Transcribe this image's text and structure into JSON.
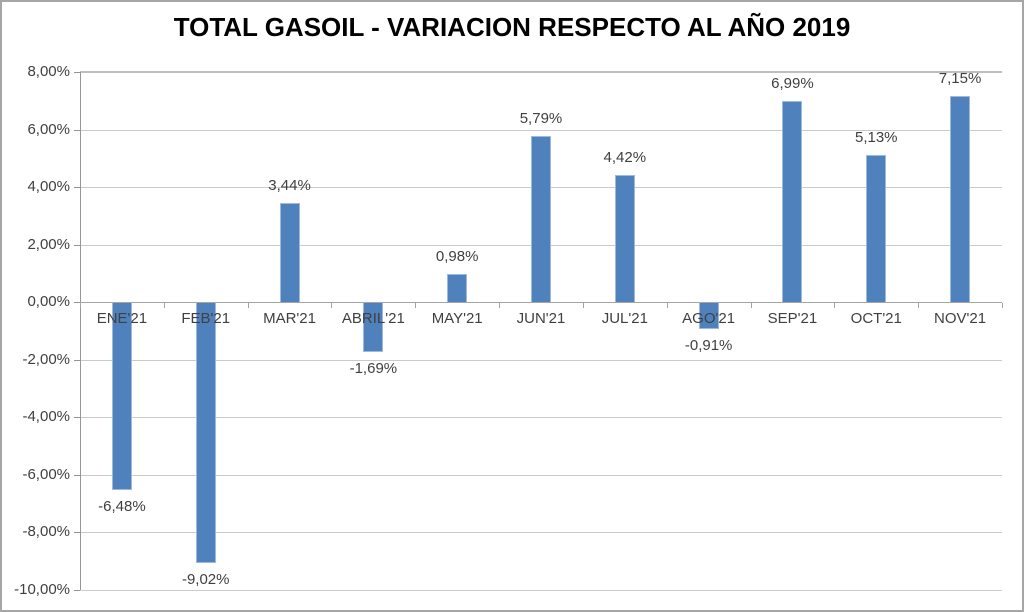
{
  "chart_data": {
    "type": "bar",
    "title": "TOTAL GASOIL - VARIACION RESPECTO AL AÑO 2019",
    "categories": [
      "ENE'21",
      "FEB'21",
      "MAR'21",
      "ABRIL'21",
      "MAY'21",
      "JUN'21",
      "JUL'21",
      "AGO'21",
      "SEP'21",
      "OCT'21",
      "NOV'21"
    ],
    "values": [
      -6.48,
      -9.02,
      3.44,
      -1.69,
      0.98,
      5.79,
      4.42,
      -0.91,
      6.99,
      5.13,
      7.15
    ],
    "value_labels": [
      "-6,48%",
      "-9,02%",
      "3,44%",
      "-1,69%",
      "0,98%",
      "5,79%",
      "4,42%",
      "-0,91%",
      "6,99%",
      "5,13%",
      "7,15%"
    ],
    "xlabel": "",
    "ylabel": "",
    "ylim": [
      -10,
      8
    ],
    "ytick_step": 2,
    "ytick_labels": [
      "8,00%",
      "6,00%",
      "4,00%",
      "2,00%",
      "0,00%",
      "-2,00%",
      "-4,00%",
      "-6,00%",
      "-8,00%",
      "-10,00%"
    ],
    "grid": true,
    "legend": false,
    "colors": {
      "bar_fill": "#4F81BD",
      "bar_edge": "#9DB9DC",
      "gridline": "#C9CACC",
      "top_gridline": "#BFBFBF",
      "axis": "#949698",
      "label_text": "#404040",
      "title_text": "#000000",
      "border": "#A6A6A6"
    }
  }
}
